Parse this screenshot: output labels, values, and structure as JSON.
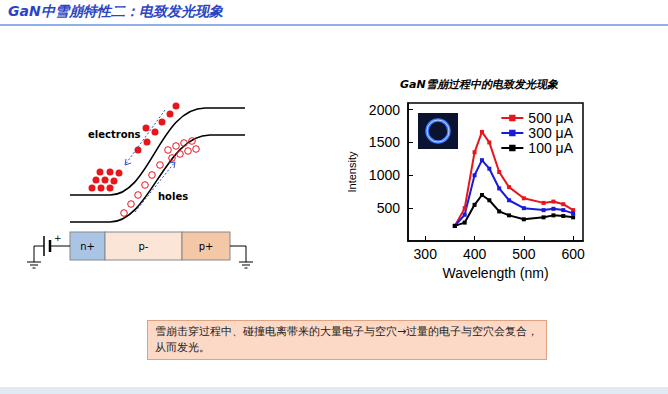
{
  "title": "GaN中雪崩特性二：电致发光现象",
  "diagram": {
    "electrons_label": "electrons",
    "holes_label": "holes",
    "regions": [
      "n+",
      "p-",
      "p+"
    ],
    "battery_sign": "+"
  },
  "callout": {
    "lines": [
      "雪崩击穿过程中、碰撞电离带来的大量电子与空穴→过量的电子与空穴会复合，",
      "从而发光。"
    ]
  },
  "chart_data": {
    "type": "line",
    "title": "GaN雪崩过程中的电致发光现象",
    "x_label": "Wavelength (nm)",
    "y_label": "Intensity",
    "x": [
      360,
      380,
      400,
      415,
      430,
      450,
      470,
      500,
      540,
      560,
      580,
      600
    ],
    "series": [
      {
        "name": "500 μA",
        "color": "#e8151b",
        "values": [
          230,
          500,
          1350,
          1660,
          1500,
          1050,
          820,
          650,
          580,
          600,
          560,
          470
        ]
      },
      {
        "name": "300 μA",
        "color": "#1a1adb",
        "values": [
          230,
          400,
          1000,
          1230,
          1100,
          800,
          620,
          500,
          470,
          490,
          470,
          420
        ]
      },
      {
        "name": "100 μA",
        "color": "#000000",
        "values": [
          230,
          280,
          550,
          700,
          620,
          450,
          390,
          330,
          360,
          390,
          380,
          360
        ]
      }
    ],
    "xlim": [
      265,
      620
    ],
    "ylim": [
      0,
      2100
    ],
    "xticks": [
      300,
      400,
      500,
      600
    ],
    "yticks": [
      500,
      1000,
      1500,
      2000
    ],
    "grid": false,
    "legend": "upper right",
    "marker": "square"
  }
}
